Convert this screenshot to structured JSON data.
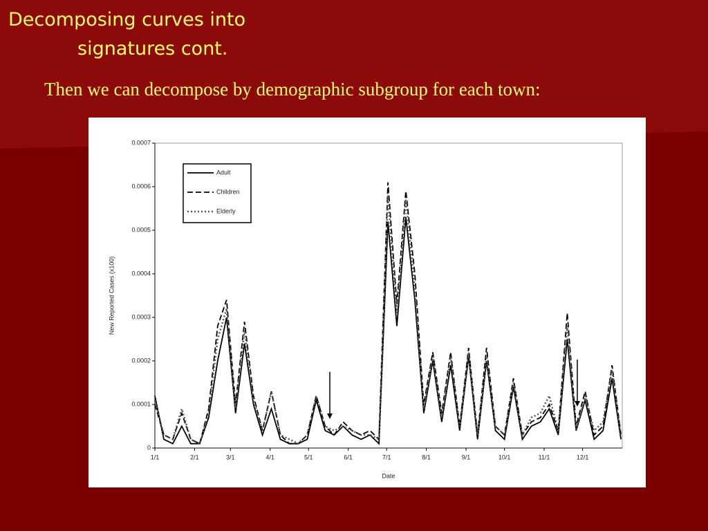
{
  "slide": {
    "title_lines": [
      "Decomposing curves into",
      "signatures cont."
    ],
    "subtitle": "Then we can decompose by demographic subgroup for each town:"
  },
  "chart_data": {
    "type": "line",
    "x_label": "Date",
    "y_label": "New Reported Cases (x100)",
    "x": [
      0,
      7,
      14,
      21,
      28,
      35,
      42,
      49,
      56,
      63,
      70,
      77,
      84,
      91,
      98,
      105,
      112,
      119,
      126,
      133,
      140,
      147,
      154,
      161,
      168,
      175,
      182,
      189,
      196,
      203,
      210,
      217,
      224,
      231,
      238,
      245,
      252,
      259,
      266,
      273,
      280,
      287,
      294,
      301,
      308,
      315,
      322,
      329,
      336,
      343,
      350,
      357,
      364
    ],
    "xlim": [
      0,
      365
    ],
    "xticks": [
      {
        "value": 0,
        "label": "1/1"
      },
      {
        "value": 31,
        "label": "2/1"
      },
      {
        "value": 59,
        "label": "3/1"
      },
      {
        "value": 90,
        "label": "4/1"
      },
      {
        "value": 120,
        "label": "5/1"
      },
      {
        "value": 151,
        "label": "6/1"
      },
      {
        "value": 181,
        "label": "7/1"
      },
      {
        "value": 212,
        "label": "8/1"
      },
      {
        "value": 243,
        "label": "9/1"
      },
      {
        "value": 273,
        "label": "10/1"
      },
      {
        "value": 304,
        "label": "11/1"
      },
      {
        "value": 334,
        "label": "12/1"
      }
    ],
    "ylim": [
      0,
      0.0007
    ],
    "yticks": [
      0,
      0.0001,
      0.0002,
      0.0003,
      0.0004,
      0.0005,
      0.0006,
      0.0007
    ],
    "legend": "upper left",
    "series": [
      {
        "name": "Adult",
        "color": "#000000",
        "linestyle": "solid",
        "values": [
          0.00012,
          2e-05,
          1e-05,
          5e-05,
          1e-05,
          1e-05,
          7e-05,
          0.0002,
          0.0003,
          8e-05,
          0.00024,
          0.0001,
          3e-05,
          9e-05,
          2e-05,
          1e-05,
          1e-05,
          2e-05,
          0.00011,
          4e-05,
          3e-05,
          5e-05,
          3e-05,
          2e-05,
          3e-05,
          1e-05,
          0.00052,
          0.00028,
          0.00053,
          0.00034,
          8e-05,
          0.0002,
          6e-05,
          0.00019,
          4e-05,
          0.00021,
          2e-05,
          0.0002,
          4e-05,
          2e-05,
          0.00014,
          2e-05,
          5e-05,
          6e-05,
          9e-05,
          3e-05,
          0.00025,
          4e-05,
          0.00011,
          2e-05,
          4e-05,
          0.00016,
          2e-05
        ]
      },
      {
        "name": "Children",
        "color": "#000000",
        "linestyle": "dashed",
        "values": [
          0.0001,
          3e-05,
          2e-05,
          8e-05,
          2e-05,
          1e-05,
          9e-05,
          0.00028,
          0.00034,
          0.0001,
          0.00029,
          0.00012,
          4e-05,
          0.00013,
          3e-05,
          1e-05,
          1e-05,
          3e-05,
          0.00012,
          5e-05,
          3e-05,
          6e-05,
          4e-05,
          3e-05,
          4e-05,
          2e-05,
          0.00061,
          0.00033,
          0.00059,
          0.0004,
          0.0001,
          0.00022,
          8e-05,
          0.00022,
          5e-05,
          0.00023,
          3e-05,
          0.00023,
          5e-05,
          3e-05,
          0.00016,
          3e-05,
          6e-05,
          7e-05,
          0.0001,
          4e-05,
          0.00031,
          5e-05,
          0.00013,
          3e-05,
          5e-05,
          0.00019,
          3e-05
        ]
      },
      {
        "name": "Elderly",
        "color": "#555555",
        "linestyle": "dotted",
        "values": [
          0.00011,
          3e-05,
          2e-05,
          9e-05,
          2e-05,
          1e-05,
          8e-05,
          0.00025,
          0.00032,
          9e-05,
          0.00027,
          0.00011,
          4e-05,
          0.00013,
          3e-05,
          2e-05,
          1e-05,
          3e-05,
          0.00012,
          5e-05,
          4e-05,
          5e-05,
          4e-05,
          3e-05,
          3e-05,
          2e-05,
          0.00058,
          0.00031,
          0.00057,
          0.00037,
          9e-05,
          0.00021,
          7e-05,
          0.00021,
          5e-05,
          0.00022,
          3e-05,
          0.00021,
          5e-05,
          3e-05,
          0.00015,
          3e-05,
          7e-05,
          8e-05,
          0.00012,
          4e-05,
          0.00028,
          4e-05,
          0.00012,
          4e-05,
          6e-05,
          0.00018,
          3e-05
        ]
      }
    ]
  }
}
